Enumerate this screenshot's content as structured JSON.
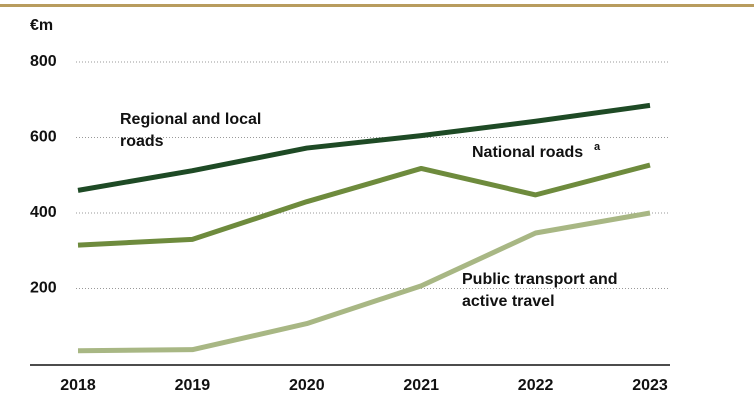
{
  "chart_data": {
    "type": "line",
    "unit_label": "€m",
    "categories": [
      "2018",
      "2019",
      "2020",
      "2021",
      "2022",
      "2023"
    ],
    "series": [
      {
        "name": [
          "Regional and local",
          "roads"
        ],
        "color": "#1e4a25",
        "values": [
          460,
          512,
          572,
          605,
          643,
          685
        ]
      },
      {
        "name": [
          "National roads"
        ],
        "note_marker": "a",
        "color": "#6e8b3d",
        "values": [
          315,
          330,
          430,
          518,
          448,
          527
        ]
      },
      {
        "name": [
          "Public transport and",
          "active travel"
        ],
        "color": "#a8b784",
        "values": [
          35,
          38,
          107,
          207,
          347,
          400
        ]
      }
    ],
    "ylim": [
      0,
      800
    ],
    "yticks": [
      200,
      400,
      600,
      800
    ],
    "grid": true
  }
}
